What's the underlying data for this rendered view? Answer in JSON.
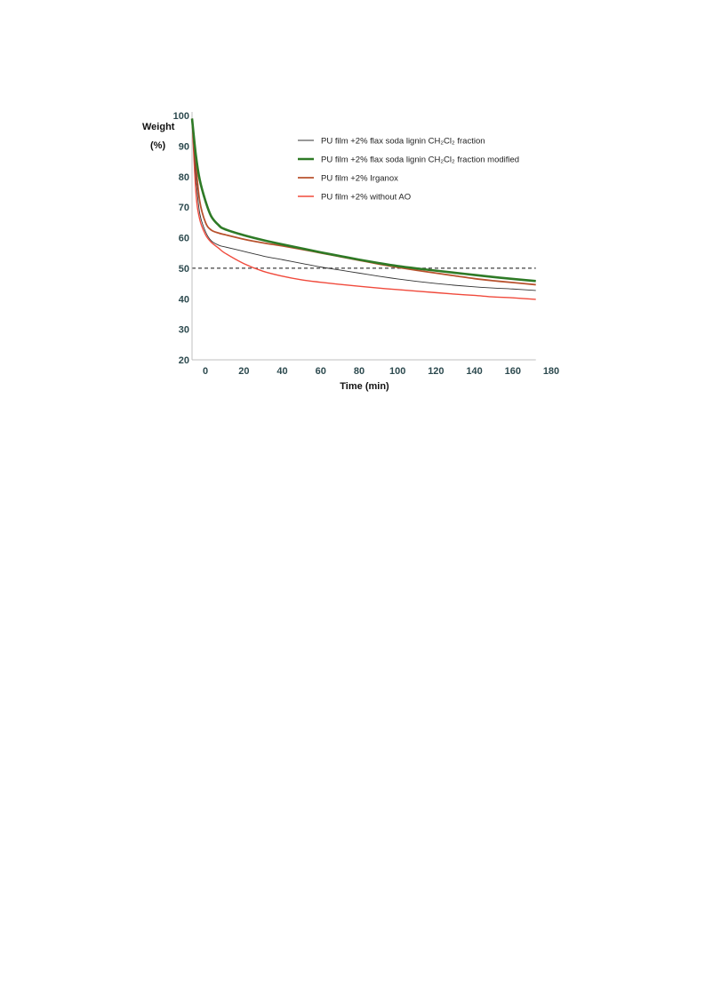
{
  "chart_data": {
    "type": "line",
    "xlabel": "Time (min)",
    "ylabel_line1": "Weight",
    "ylabel_line2": "(%)",
    "xlim": [
      -7,
      180
    ],
    "ylim": [
      20,
      100
    ],
    "xticks": [
      0,
      20,
      40,
      60,
      80,
      100,
      120,
      140,
      160,
      180
    ],
    "yticks": [
      20,
      30,
      40,
      50,
      60,
      70,
      80,
      90,
      100
    ],
    "reference_line": {
      "y": 50,
      "style": "dashed"
    },
    "legend_position": "top-right",
    "series": [
      {
        "name": "PU film +2% flax soda lignin CH₂Cl₂ fraction",
        "color": "#333333",
        "x": [
          -7,
          -5,
          -3,
          0,
          3,
          7,
          10,
          20,
          30,
          40,
          50,
          60,
          70,
          80,
          90,
          100,
          110,
          120,
          130,
          140,
          150,
          160,
          172
        ],
        "y": [
          99,
          80,
          68,
          62,
          59,
          57.5,
          57,
          55.5,
          54,
          52.8,
          51.6,
          50.4,
          49.4,
          48.4,
          47.4,
          46.5,
          45.7,
          45,
          44.4,
          43.9,
          43.5,
          43.2,
          42.7
        ]
      },
      {
        "name": "PU film +2% flax soda lignin CH₂Cl₂ fraction modified",
        "color": "#2e7a26",
        "x": [
          -7,
          -5,
          -3,
          0,
          3,
          7,
          10,
          20,
          30,
          40,
          50,
          60,
          70,
          80,
          90,
          100,
          110,
          120,
          130,
          140,
          150,
          160,
          172
        ],
        "y": [
          99,
          87,
          79,
          72,
          67,
          64,
          62.8,
          60.8,
          59.2,
          57.8,
          56.5,
          55.2,
          54,
          52.8,
          51.7,
          50.7,
          49.9,
          49.2,
          48.5,
          47.8,
          47.1,
          46.5,
          45.8
        ]
      },
      {
        "name": "PU film +2% Irganox",
        "color": "#b8522e",
        "x": [
          -7,
          -5,
          -3,
          0,
          3,
          7,
          10,
          20,
          30,
          40,
          50,
          60,
          70,
          80,
          90,
          100,
          110,
          120,
          130,
          140,
          150,
          160,
          172
        ],
        "y": [
          99,
          84,
          72,
          65,
          62.5,
          61.5,
          61,
          59.5,
          58.3,
          57.3,
          56.2,
          55,
          53.8,
          52.6,
          51.4,
          50.3,
          49.3,
          48.4,
          47.5,
          46.6,
          45.9,
          45.3,
          44.6
        ]
      },
      {
        "name": "PU film +2% without AO",
        "color": "#f04a3c",
        "x": [
          -7,
          -5,
          -3,
          0,
          3,
          7,
          10,
          20,
          30,
          40,
          50,
          60,
          70,
          80,
          90,
          100,
          110,
          120,
          130,
          140,
          150,
          160,
          172
        ],
        "y": [
          99,
          75,
          66,
          61,
          58.5,
          56.5,
          55,
          51.5,
          49,
          47.4,
          46.2,
          45.4,
          44.7,
          44.1,
          43.5,
          43,
          42.5,
          42,
          41.5,
          41.1,
          40.6,
          40.3,
          39.8
        ]
      }
    ]
  }
}
